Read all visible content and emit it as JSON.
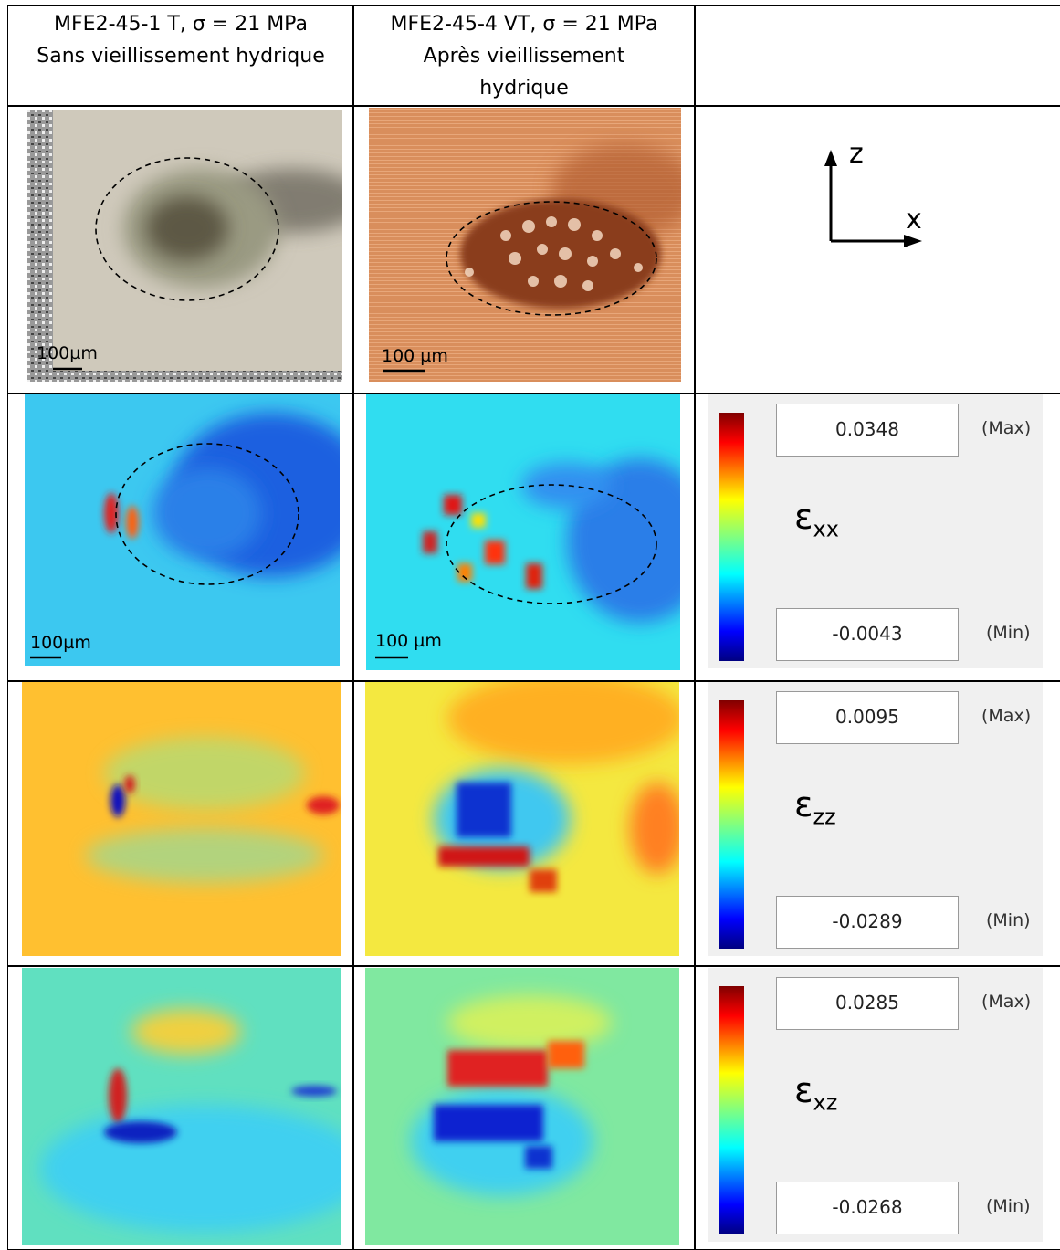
{
  "table": {
    "header": [
      {
        "line1": "MFE2-45-1 T, σ = 21 MPa",
        "line2": "Sans vieillissement hydrique"
      },
      {
        "line1": "MFE2-45-4 VT, σ = 21 MPa",
        "line2": "Après vieillissement hydrique"
      }
    ],
    "micrographs": {
      "scale_bars": [
        "100µm",
        "100 µm"
      ],
      "axes": {
        "z": "z",
        "x": "x"
      }
    },
    "strain_maps": [
      {
        "symbol": "ε",
        "subscript": "xx",
        "max": "0.0348",
        "max_label": "(Max)",
        "min": "-0.0043",
        "min_label": "(Min)",
        "scale_bars": [
          "100µm",
          "100 µm"
        ]
      },
      {
        "symbol": "ε",
        "subscript": "zz",
        "max": "0.0095",
        "max_label": "(Max)",
        "min": "-0.0289",
        "min_label": "(Min)"
      },
      {
        "symbol": "ε",
        "subscript": "xz",
        "max": "0.0285",
        "max_label": "(Max)",
        "min": "-0.0268",
        "min_label": "(Min)"
      }
    ]
  }
}
